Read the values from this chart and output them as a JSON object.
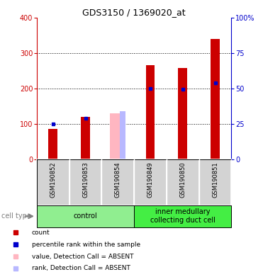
{
  "title": "GDS3150 / 1369020_at",
  "samples": [
    "GSM190852",
    "GSM190853",
    "GSM190854",
    "GSM190849",
    "GSM190850",
    "GSM190851"
  ],
  "groups": [
    {
      "label": "control",
      "indices": [
        0,
        1,
        2
      ]
    },
    {
      "label": "inner medullary\ncollecting duct cell",
      "indices": [
        3,
        4,
        5
      ]
    }
  ],
  "red_bars": [
    85,
    120,
    0,
    265,
    258,
    340
  ],
  "blue_dots": [
    100,
    115,
    0,
    200,
    198,
    215
  ],
  "pink_bars": [
    0,
    0,
    130,
    0,
    0,
    0
  ],
  "lavender_bars": [
    0,
    0,
    135,
    0,
    0,
    0
  ],
  "absent": [
    false,
    false,
    true,
    false,
    false,
    false
  ],
  "ylim": [
    0,
    400
  ],
  "left_axis_color": "#cc0000",
  "right_axis_color": "#0000cc",
  "bar_color": "#cc0000",
  "pink_color": "#ffb6c1",
  "lavender_color": "#b8b8ff",
  "blue_color": "#0000cc",
  "gray_bg": "#d3d3d3",
  "group_color_control": "#90ee90",
  "group_color_inner": "#44ee44",
  "legend_items": [
    {
      "color": "#cc0000",
      "label": "count"
    },
    {
      "color": "#0000cc",
      "label": "percentile rank within the sample"
    },
    {
      "color": "#ffb6c1",
      "label": "value, Detection Call = ABSENT"
    },
    {
      "color": "#b8b8ff",
      "label": "rank, Detection Call = ABSENT"
    }
  ]
}
